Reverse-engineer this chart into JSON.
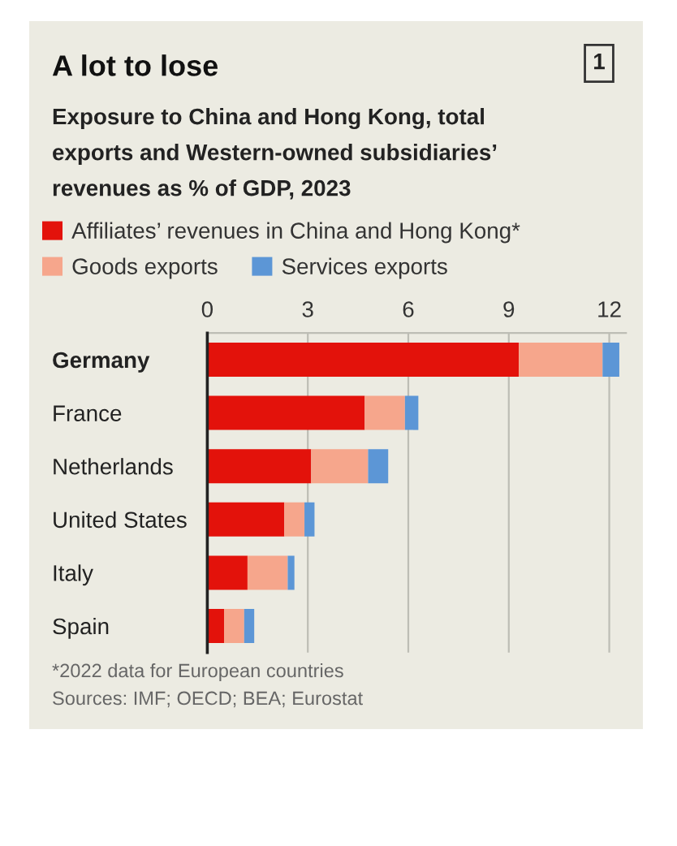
{
  "chart_data": {
    "type": "bar",
    "title": "A lot to lose",
    "subtitle": "Exposure to China and Hong Kong, total exports and Western-owned subsidiaries’ revenues as % of GDP, 2023",
    "categories": [
      "Germany",
      "France",
      "Netherlands",
      "United States",
      "Italy",
      "Spain"
    ],
    "orientation": "horizontal",
    "stacked": true,
    "series": [
      {
        "name": "Affiliates’ revenues in China and Hong Kong*",
        "color": "#e3120b",
        "values": [
          9.3,
          4.7,
          3.1,
          2.3,
          1.2,
          0.5
        ]
      },
      {
        "name": "Goods exports",
        "color": "#f6a68c",
        "values": [
          2.5,
          1.2,
          1.7,
          0.6,
          1.2,
          0.6
        ]
      },
      {
        "name": "Services exports",
        "color": "#5c96d6",
        "values": [
          0.5,
          0.4,
          0.6,
          0.3,
          0.2,
          0.3
        ]
      }
    ],
    "xlim": [
      0,
      12.5
    ],
    "xticks": [
      0,
      3,
      6,
      9,
      12
    ],
    "grid": "x",
    "legend": "top left",
    "annotations": [
      "1",
      "*2022 data for European countries",
      "Sources: IMF; OECD; BEA; Eurostat"
    ]
  }
}
